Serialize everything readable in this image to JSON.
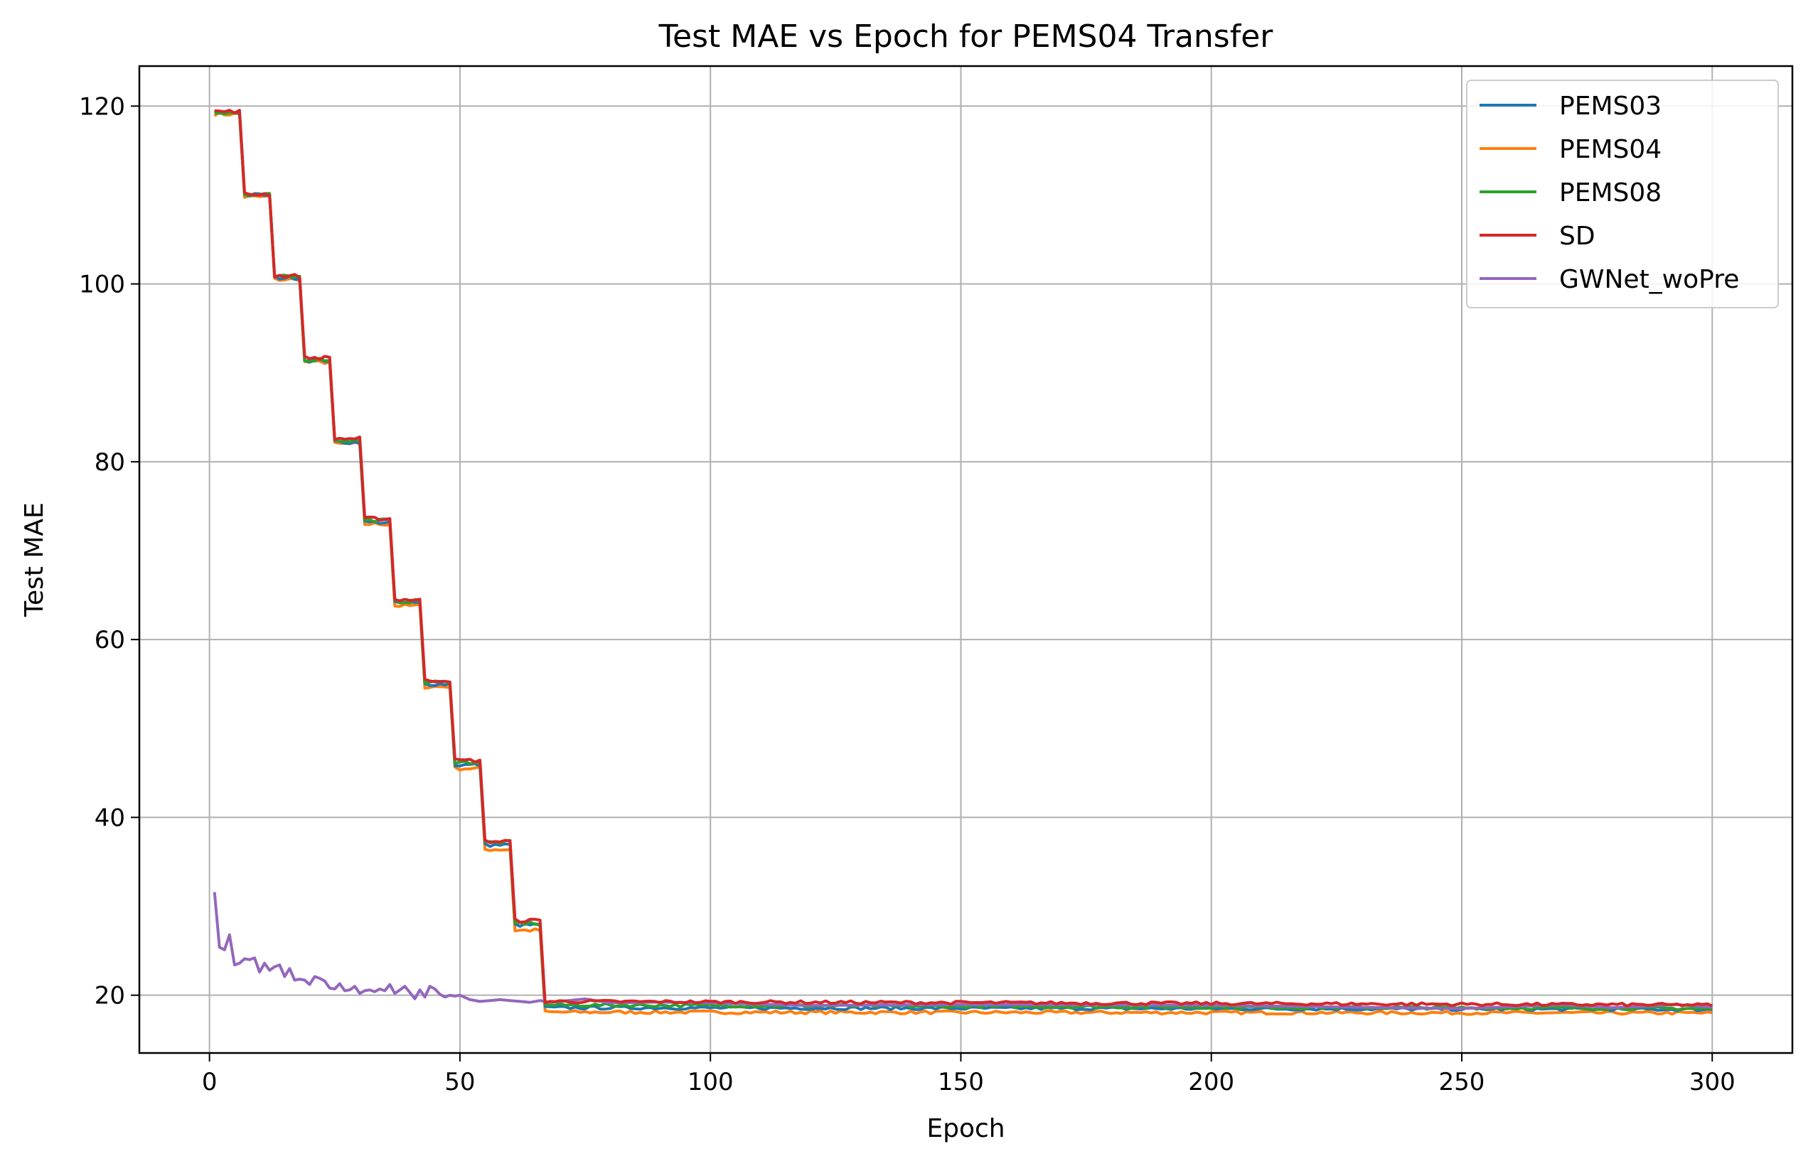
{
  "chart_data": {
    "type": "line",
    "title": "Test MAE vs Epoch for PEMS04 Transfer",
    "xlabel": "Epoch",
    "ylabel": "Test MAE",
    "xlim": [
      -14,
      316
    ],
    "ylim": [
      13.5,
      124.5
    ],
    "xticks": [
      0,
      50,
      100,
      150,
      200,
      250,
      300
    ],
    "yticks": [
      20,
      40,
      60,
      80,
      100,
      120
    ],
    "grid": true,
    "legend_position": "top-right",
    "colors": {
      "PEMS03": "#1f77b4",
      "PEMS04": "#ff7f0e",
      "PEMS08": "#2ca02c",
      "SD": "#d62728",
      "GWNet_woPre": "#9467bd"
    },
    "stepped_series": {
      "step_epochs": [
        1,
        7,
        13,
        19,
        25,
        31,
        37,
        43,
        49,
        55,
        61,
        67
      ],
      "plateau_end_epochs": [
        6,
        12,
        18,
        24,
        30,
        36,
        42,
        48,
        54,
        60,
        66,
        300
      ]
    },
    "series": [
      {
        "name": "PEMS03",
        "step_values": [
          119.3,
          110.0,
          100.7,
          91.4,
          82.2,
          73.2,
          64.1,
          55.0,
          45.9,
          36.9,
          27.9,
          18.6
        ],
        "final_value": 18.4
      },
      {
        "name": "PEMS04",
        "step_values": [
          119.1,
          109.8,
          100.5,
          91.2,
          82.0,
          73.0,
          63.8,
          54.7,
          45.5,
          36.4,
          27.3,
          18.1
        ],
        "final_value": 18.0
      },
      {
        "name": "PEMS08",
        "step_values": [
          119.3,
          110.0,
          100.8,
          91.5,
          82.4,
          73.4,
          64.3,
          55.2,
          46.2,
          37.2,
          28.1,
          18.9
        ],
        "final_value": 18.5
      },
      {
        "name": "SD",
        "step_values": [
          119.4,
          110.1,
          100.9,
          91.7,
          82.6,
          73.6,
          64.5,
          55.4,
          46.4,
          37.3,
          28.4,
          19.3
        ],
        "final_value": 18.9
      },
      {
        "name": "GWNet_woPre",
        "x": [
          1,
          2,
          3,
          4,
          5,
          6,
          7,
          8,
          9,
          10,
          11,
          12,
          13,
          14,
          15,
          16,
          17,
          18,
          19,
          20,
          21,
          22,
          23,
          24,
          25,
          26,
          27,
          28,
          29,
          30,
          31,
          32,
          33,
          34,
          35,
          36,
          37,
          38,
          39,
          40,
          41,
          42,
          43,
          44,
          45,
          46,
          47,
          48,
          49,
          50,
          52,
          54,
          56,
          58,
          60,
          62,
          64,
          66,
          68,
          70,
          75,
          80,
          90,
          100,
          120,
          150,
          200,
          250,
          270,
          280,
          293,
          300
        ],
        "values": [
          31.6,
          25.4,
          25.1,
          26.8,
          23.4,
          23.6,
          24.1,
          24.0,
          24.2,
          22.6,
          23.6,
          22.8,
          23.2,
          23.4,
          22.1,
          23.0,
          21.7,
          21.8,
          21.7,
          21.2,
          22.1,
          21.9,
          21.6,
          20.8,
          20.7,
          21.3,
          20.5,
          20.6,
          21.0,
          20.2,
          20.5,
          20.6,
          20.4,
          20.7,
          20.5,
          21.2,
          20.2,
          20.6,
          21.0,
          20.3,
          19.6,
          20.6,
          19.8,
          21.0,
          20.7,
          20.1,
          19.8,
          20.0,
          19.9,
          20.0,
          19.5,
          19.3,
          19.4,
          19.5,
          19.4,
          19.3,
          19.2,
          19.4,
          19.2,
          19.3,
          19.5,
          19.2,
          19.1,
          19.3,
          19.0,
          18.9,
          18.7,
          18.6,
          19.1,
          18.7,
          19.1,
          18.7
        ]
      }
    ]
  }
}
